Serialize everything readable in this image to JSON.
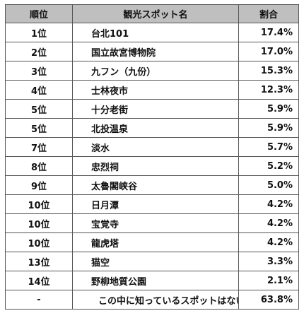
{
  "table": {
    "headers": {
      "rank": "順位",
      "name": "観光スポット名",
      "pct": "割合"
    },
    "rows": [
      {
        "rank": "1位",
        "name": "台北101",
        "pct": "17.4%"
      },
      {
        "rank": "2位",
        "name": "国立故宮博物院",
        "pct": "17.0%"
      },
      {
        "rank": "3位",
        "name": "九フン（九份）",
        "pct": "15.3%"
      },
      {
        "rank": "4位",
        "name": "士林夜市",
        "pct": "12.3%"
      },
      {
        "rank": "5位",
        "name": "十分老街",
        "pct": "5.9%"
      },
      {
        "rank": "5位",
        "name": "北投温泉",
        "pct": "5.9%"
      },
      {
        "rank": "7位",
        "name": "淡水",
        "pct": "5.7%"
      },
      {
        "rank": "8位",
        "name": "忠烈祠",
        "pct": "5.2%"
      },
      {
        "rank": "9位",
        "name": "太魯閣峡谷",
        "pct": "5.0%"
      },
      {
        "rank": "10位",
        "name": "日月潭",
        "pct": "4.2%"
      },
      {
        "rank": "10位",
        "name": "宝覚寺",
        "pct": "4.2%"
      },
      {
        "rank": "10位",
        "name": "龍虎塔",
        "pct": "4.2%"
      },
      {
        "rank": "13位",
        "name": "猫空",
        "pct": "3.3%"
      },
      {
        "rank": "14位",
        "name": "野柳地質公園",
        "pct": "2.1%"
      },
      {
        "rank": "-",
        "name": "この中に知っているスポットはない",
        "pct": "63.8%"
      }
    ]
  },
  "colors": {
    "header_bg": "#bfbfbf",
    "border": "#555555",
    "text": "#111111"
  }
}
